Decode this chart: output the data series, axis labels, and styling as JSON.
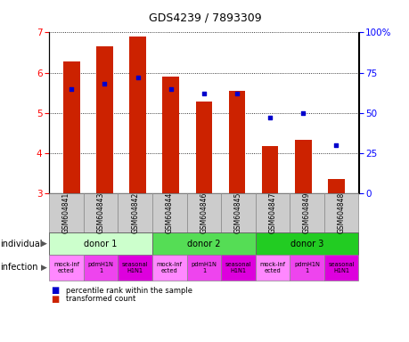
{
  "title": "GDS4239 / 7893309",
  "samples": [
    "GSM604841",
    "GSM604843",
    "GSM604842",
    "GSM604844",
    "GSM604846",
    "GSM604845",
    "GSM604847",
    "GSM604849",
    "GSM604848"
  ],
  "transformed_count": [
    6.28,
    6.65,
    6.9,
    5.9,
    5.28,
    5.55,
    4.18,
    4.33,
    3.35
  ],
  "percentile_rank": [
    65,
    68,
    72,
    65,
    62,
    62,
    47,
    50,
    30
  ],
  "bar_color": "#cc2200",
  "dot_color": "#0000cc",
  "ylim_left": [
    3,
    7
  ],
  "ylim_right": [
    0,
    100
  ],
  "yticks_left": [
    3,
    4,
    5,
    6,
    7
  ],
  "yticks_right": [
    0,
    25,
    50,
    75,
    100
  ],
  "donors": [
    {
      "label": "donor 1",
      "start": 0,
      "end": 3,
      "color": "#ccffcc"
    },
    {
      "label": "donor 2",
      "start": 3,
      "end": 6,
      "color": "#55dd55"
    },
    {
      "label": "donor 3",
      "start": 6,
      "end": 9,
      "color": "#22cc22"
    }
  ],
  "inf_labels": [
    "mock-inf\nected",
    "pdmH1N\n1",
    "seasonal\nH1N1",
    "mock-inf\nected",
    "pdmH1N\n1",
    "seasonal\nH1N1",
    "mock-inf\nected",
    "pdmH1N\n1",
    "seasonal\nH1N1"
  ],
  "inf_colors": [
    "#ff88ff",
    "#ee44ee",
    "#dd00dd",
    "#ff88ff",
    "#ee44ee",
    "#dd00dd",
    "#ff88ff",
    "#ee44ee",
    "#dd00dd"
  ],
  "bar_width": 0.5,
  "background_color": "#ffffff",
  "sample_row_color": "#cccccc",
  "title_fontsize": 9,
  "bar_fontsize": 5.5,
  "label_fontsize": 7,
  "inf_fontsize": 4.8
}
